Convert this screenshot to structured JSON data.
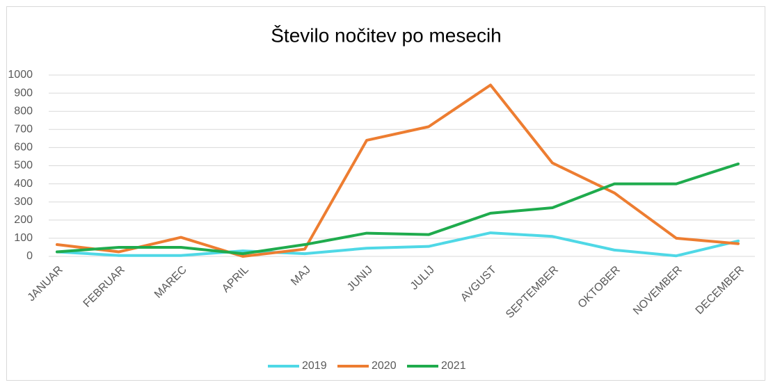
{
  "chart_data": {
    "type": "line",
    "title": "Število nočitev po mesecih",
    "categories": [
      "JANUAR",
      "FEBRUAR",
      "MAREC",
      "APRIL",
      "MAJ",
      "JUNIJ",
      "JULIJ",
      "AVGUST",
      "SEPTEMBER",
      "OKTOBER",
      "NOVEMBER",
      "DECEMBER"
    ],
    "series": [
      {
        "name": "2019",
        "color": "#4fd8e6",
        "values": [
          25,
          5,
          5,
          30,
          15,
          45,
          55,
          130,
          110,
          35,
          3,
          85
        ]
      },
      {
        "name": "2020",
        "color": "#ed7d31",
        "values": [
          65,
          25,
          105,
          0,
          40,
          640,
          715,
          945,
          515,
          350,
          100,
          70
        ]
      },
      {
        "name": "2021",
        "color": "#1fab4d",
        "values": [
          25,
          50,
          50,
          15,
          65,
          128,
          120,
          238,
          268,
          400,
          400,
          510
        ]
      }
    ],
    "ylim": [
      0,
      1000
    ],
    "yticks": [
      0,
      100,
      200,
      300,
      400,
      500,
      600,
      700,
      800,
      900,
      1000
    ],
    "grid": true,
    "legend": "bottom"
  }
}
